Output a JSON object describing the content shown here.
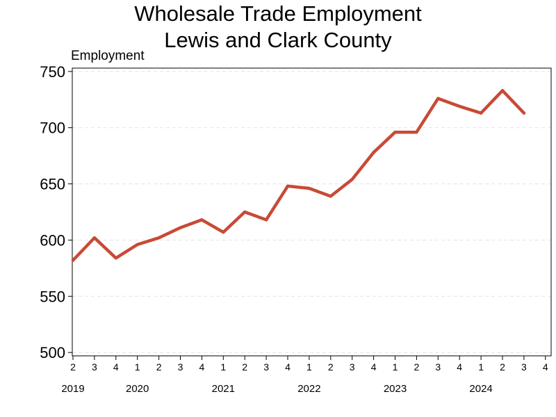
{
  "chart_data": {
    "type": "line",
    "title": [
      "Wholesale Trade Employment",
      "Lewis and Clark County"
    ],
    "ylabel": "Employment",
    "ylim": [
      500,
      750
    ],
    "yticks": [
      500,
      550,
      600,
      650,
      700,
      750
    ],
    "grid": "horizontal dashed",
    "quarter_ticks": [
      "2",
      "3",
      "4",
      "1",
      "2",
      "3",
      "4",
      "1",
      "2",
      "3",
      "4",
      "1",
      "2",
      "3",
      "4",
      "1",
      "2",
      "3",
      "4",
      "1",
      "2",
      "3",
      "4"
    ],
    "years": [
      {
        "label": "2019",
        "quarter_index": 0
      },
      {
        "label": "2020",
        "quarter_index": 3
      },
      {
        "label": "2021",
        "quarter_index": 7
      },
      {
        "label": "2022",
        "quarter_index": 11
      },
      {
        "label": "2023",
        "quarter_index": 15
      },
      {
        "label": "2024",
        "quarter_index": 19
      }
    ],
    "series": [
      {
        "color": "#c84a36",
        "x": [
          "2019 Q2",
          "2019 Q3",
          "2019 Q4",
          "2020 Q1",
          "2020 Q2",
          "2020 Q3",
          "2020 Q4",
          "2021 Q1",
          "2021 Q2",
          "2021 Q3",
          "2021 Q4",
          "2022 Q1",
          "2022 Q2",
          "2022 Q3",
          "2022 Q4",
          "2023 Q1",
          "2023 Q2",
          "2023 Q3",
          "2023 Q4",
          "2024 Q1",
          "2024 Q2",
          "2024 Q3"
        ],
        "values": [
          582,
          602,
          584,
          596,
          602,
          611,
          618,
          607,
          625,
          618,
          648,
          646,
          639,
          654,
          678,
          696,
          696,
          726,
          719,
          713,
          733,
          713
        ]
      }
    ]
  }
}
